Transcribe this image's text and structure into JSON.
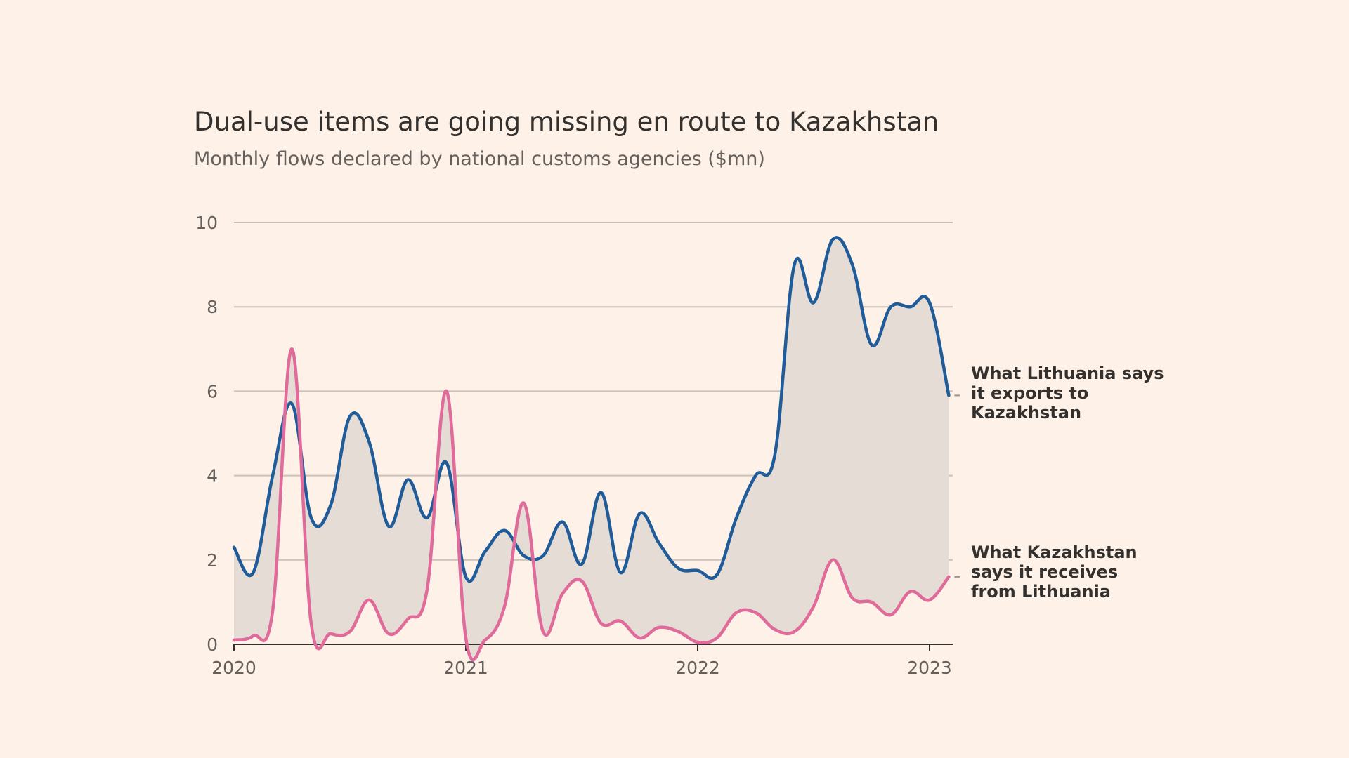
{
  "title": "Dual-use items are going missing en route to Kazakhstan",
  "subtitle": "Monthly flows declared by national customs agencies ($mn)",
  "colors": {
    "background": "#fdf1e8",
    "lithuania": "#1f5c99",
    "kazakhstan": "#e06b9a",
    "gap_fill": "#e4dcd5",
    "grid": "#ccc1b7",
    "axis": "#33302e"
  },
  "chart_data": {
    "type": "line",
    "title": "Dual-use items are going missing en route to Kazakhstan",
    "subtitle": "Monthly flows declared by national customs agencies ($mn)",
    "xlabel": "",
    "ylabel": "",
    "x_unit": "year (fractional)",
    "xlim": [
      2020.0,
      2023.1
    ],
    "ylim": [
      0,
      10
    ],
    "yticks": [
      0,
      2,
      4,
      6,
      8,
      10
    ],
    "ytick_labels": [
      "0",
      "2",
      "4",
      "6",
      "8",
      "10"
    ],
    "xticks": [
      2020,
      2021,
      2022,
      2023
    ],
    "xtick_labels": [
      "2020",
      "2021",
      "2022",
      "2023"
    ],
    "grid": true,
    "area_between_series": true,
    "series": [
      {
        "name": "What Lithuania says it exports to Kazakhstan",
        "label_lines": [
          "What Lithuania says",
          "it exports to",
          "Kazakhstan"
        ],
        "color_key": "lithuania",
        "x": [
          2020.0,
          2020.083,
          2020.167,
          2020.25,
          2020.333,
          2020.417,
          2020.5,
          2020.583,
          2020.667,
          2020.75,
          2020.833,
          2020.917,
          2021.0,
          2021.083,
          2021.167,
          2021.25,
          2021.333,
          2021.417,
          2021.5,
          2021.583,
          2021.667,
          2021.75,
          2021.833,
          2021.917,
          2022.0,
          2022.083,
          2022.167,
          2022.25,
          2022.333,
          2022.417,
          2022.5,
          2022.583,
          2022.667,
          2022.75,
          2022.833,
          2022.917,
          2023.0,
          2023.083
        ],
        "values": [
          2.3,
          1.7,
          4.0,
          5.7,
          3.0,
          3.3,
          5.4,
          4.8,
          2.8,
          3.9,
          3.0,
          4.3,
          1.6,
          2.2,
          2.7,
          2.1,
          2.1,
          2.9,
          1.9,
          3.6,
          1.7,
          3.1,
          2.4,
          1.8,
          1.75,
          1.65,
          3.0,
          4.0,
          4.5,
          9.0,
          8.1,
          9.6,
          9.0,
          7.1,
          8.0,
          8.0,
          8.1,
          5.9
        ]
      },
      {
        "name": "What Kazakhstan says it receives from Lithuania",
        "label_lines": [
          "What Kazakhstan",
          "says it receives",
          "from Lithuania"
        ],
        "color_key": "kazakhstan",
        "x": [
          2020.0,
          2020.083,
          2020.167,
          2020.25,
          2020.333,
          2020.417,
          2020.5,
          2020.583,
          2020.667,
          2020.75,
          2020.833,
          2020.917,
          2021.0,
          2021.083,
          2021.167,
          2021.25,
          2021.333,
          2021.417,
          2021.5,
          2021.583,
          2021.667,
          2021.75,
          2021.833,
          2021.917,
          2022.0,
          2022.083,
          2022.167,
          2022.25,
          2022.333,
          2022.417,
          2022.5,
          2022.583,
          2022.667,
          2022.75,
          2022.833,
          2022.917,
          2023.0,
          2023.083
        ],
        "values": [
          0.1,
          0.2,
          0.8,
          7.0,
          0.5,
          0.25,
          0.3,
          1.05,
          0.25,
          0.6,
          1.3,
          6.0,
          0.15,
          0.1,
          0.9,
          3.35,
          0.3,
          1.2,
          1.5,
          0.5,
          0.55,
          0.15,
          0.4,
          0.3,
          0.05,
          0.15,
          0.75,
          0.75,
          0.35,
          0.3,
          0.9,
          2.0,
          1.1,
          1.0,
          0.7,
          1.25,
          1.05,
          1.6
        ]
      }
    ]
  }
}
